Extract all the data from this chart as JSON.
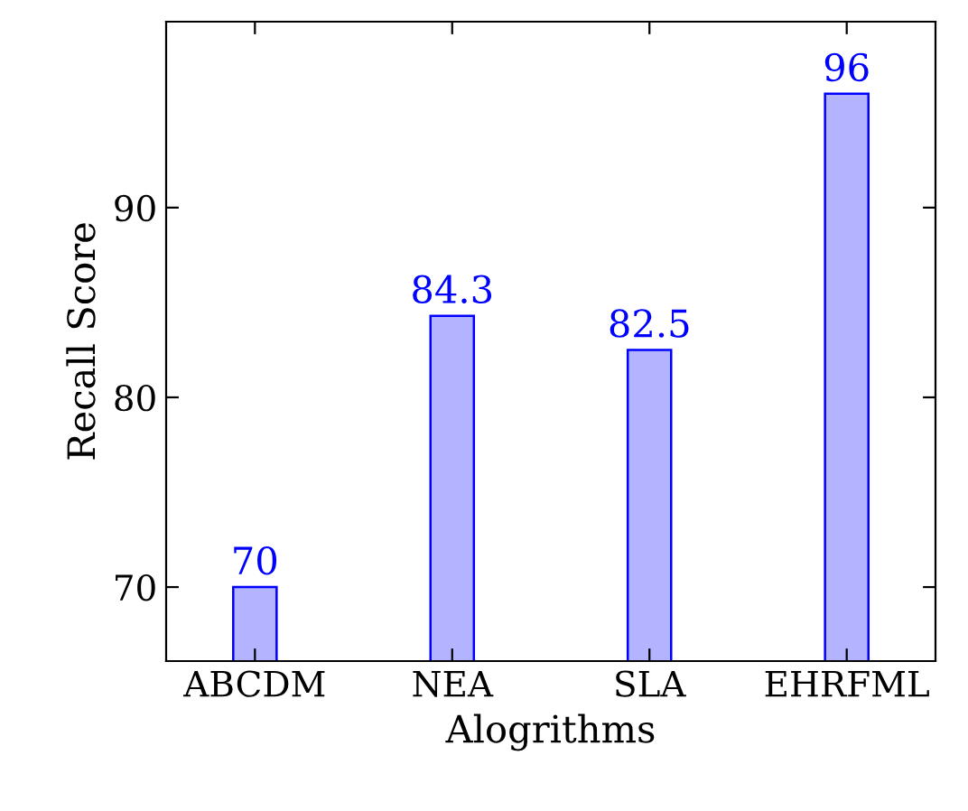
{
  "chart_data": {
    "type": "bar",
    "xlabel": "Alogrithms",
    "ylabel": "Recall Score",
    "categories": [
      "ABCDM",
      "NEA",
      "SLA",
      "EHRFML"
    ],
    "values": [
      70,
      84.3,
      82.5,
      96
    ],
    "color": "#b3b3ff",
    "ylim": [
      66.1,
      99.8
    ],
    "yticks": [
      70,
      80,
      90
    ],
    "data_labels": true,
    "grid": false,
    "legend": false
  }
}
